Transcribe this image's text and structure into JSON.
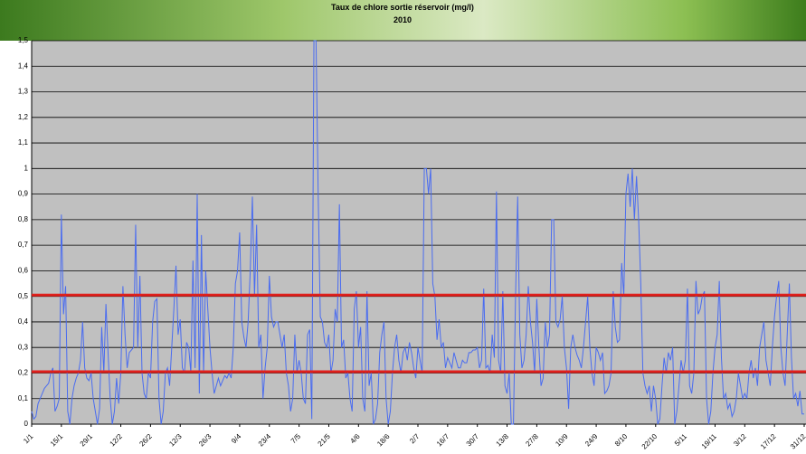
{
  "chart_data": {
    "type": "line",
    "title": "Taux de chlore sortie réservoir (mg/l)",
    "subtitle": "2010",
    "categories": [
      "1/1",
      null,
      null,
      null,
      null,
      null,
      null,
      null,
      null,
      null,
      null,
      null,
      null,
      null,
      "15/1",
      null,
      null,
      null,
      null,
      null,
      null,
      null,
      null,
      null,
      null,
      null,
      null,
      null,
      "29/1",
      null,
      null,
      null,
      null,
      null,
      null,
      null,
      null,
      null,
      null,
      null,
      null,
      null,
      "12/2",
      null,
      null,
      null,
      null,
      null,
      null,
      null,
      null,
      null,
      null,
      null,
      null,
      null,
      "26/2",
      null,
      null,
      null,
      null,
      null,
      null,
      null,
      null,
      null,
      null,
      null,
      null,
      null,
      "12/3",
      null,
      null,
      null,
      null,
      null,
      null,
      null,
      null,
      null,
      null,
      null,
      null,
      null,
      "26/3",
      null,
      null,
      null,
      null,
      null,
      null,
      null,
      null,
      null,
      null,
      null,
      null,
      null,
      "9/4",
      null,
      null,
      null,
      null,
      null,
      null,
      null,
      null,
      null,
      null,
      null,
      null,
      null,
      "23/4",
      null,
      null,
      null,
      null,
      null,
      null,
      null,
      null,
      null,
      null,
      null,
      null,
      null,
      "7/5",
      null,
      null,
      null,
      null,
      null,
      null,
      null,
      null,
      null,
      null,
      null,
      null,
      null,
      "21/5",
      null,
      null,
      null,
      null,
      null,
      null,
      null,
      null,
      null,
      null,
      null,
      null,
      null,
      "4/6",
      null,
      null,
      null,
      null,
      null,
      null,
      null,
      null,
      null,
      null,
      null,
      null,
      null,
      "18/6",
      null,
      null,
      null,
      null,
      null,
      null,
      null,
      null,
      null,
      null,
      null,
      null,
      null,
      "2/7",
      null,
      null,
      null,
      null,
      null,
      null,
      null,
      null,
      null,
      null,
      null,
      null,
      null,
      "16/7",
      null,
      null,
      null,
      null,
      null,
      null,
      null,
      null,
      null,
      null,
      null,
      null,
      null,
      "30/7",
      null,
      null,
      null,
      null,
      null,
      null,
      null,
      null,
      null,
      null,
      null,
      null,
      null,
      "13/8",
      null,
      null,
      null,
      null,
      null,
      null,
      null,
      null,
      null,
      null,
      null,
      null,
      null,
      "27/8",
      null,
      null,
      null,
      null,
      null,
      null,
      null,
      null,
      null,
      null,
      null,
      null,
      null,
      "10/9",
      null,
      null,
      null,
      null,
      null,
      null,
      null,
      null,
      null,
      null,
      null,
      null,
      null,
      "24/9",
      null,
      null,
      null,
      null,
      null,
      null,
      null,
      null,
      null,
      null,
      null,
      null,
      null,
      "8/10",
      null,
      null,
      null,
      null,
      null,
      null,
      null,
      null,
      null,
      null,
      null,
      null,
      null,
      "22/10",
      null,
      null,
      null,
      null,
      null,
      null,
      null,
      null,
      null,
      null,
      null,
      null,
      null,
      "5/11",
      null,
      null,
      null,
      null,
      null,
      null,
      null,
      null,
      null,
      null,
      null,
      null,
      null,
      "19/11",
      null,
      null,
      null,
      null,
      null,
      null,
      null,
      null,
      null,
      null,
      null,
      null,
      null,
      "3/12",
      null,
      null,
      null,
      null,
      null,
      null,
      null,
      null,
      null,
      null,
      null,
      null,
      null,
      "17/12",
      null,
      null,
      null,
      null,
      null,
      null,
      null,
      null,
      null,
      null,
      null,
      null,
      null,
      "31/12"
    ],
    "values": [
      0.05,
      0.02,
      0.03,
      0.08,
      0.1,
      0.12,
      0.14,
      0.15,
      0.16,
      0.2,
      0.22,
      0.05,
      0.07,
      0.1,
      0.82,
      0.43,
      0.54,
      0.05,
      0.0,
      0.1,
      0.15,
      0.18,
      0.2,
      0.25,
      0.4,
      0.22,
      0.18,
      0.17,
      0.2,
      0.1,
      0.05,
      0.0,
      0.06,
      0.38,
      0.2,
      0.47,
      0.28,
      0.1,
      0.0,
      0.05,
      0.18,
      0.08,
      0.2,
      0.54,
      0.35,
      0.22,
      0.28,
      0.29,
      0.3,
      0.78,
      0.3,
      0.58,
      0.2,
      0.12,
      0.1,
      0.2,
      0.18,
      0.4,
      0.48,
      0.49,
      0.1,
      0.0,
      0.05,
      0.2,
      0.22,
      0.15,
      0.3,
      0.45,
      0.62,
      0.35,
      0.41,
      0.22,
      0.2,
      0.32,
      0.3,
      0.2,
      0.64,
      0.22,
      0.9,
      0.12,
      0.74,
      0.2,
      0.6,
      0.45,
      0.3,
      0.2,
      0.12,
      0.15,
      0.18,
      0.15,
      0.17,
      0.19,
      0.18,
      0.2,
      0.18,
      0.3,
      0.55,
      0.6,
      0.75,
      0.4,
      0.34,
      0.3,
      0.4,
      0.6,
      0.89,
      0.5,
      0.78,
      0.3,
      0.35,
      0.1,
      0.22,
      0.3,
      0.58,
      0.42,
      0.38,
      0.4,
      0.4,
      0.35,
      0.3,
      0.35,
      0.2,
      0.15,
      0.05,
      0.1,
      0.35,
      0.2,
      0.25,
      0.2,
      0.1,
      0.08,
      0.35,
      0.37,
      0.02,
      1.5,
      1.5,
      0.9,
      0.42,
      0.4,
      0.32,
      0.3,
      0.35,
      0.2,
      0.25,
      0.45,
      0.4,
      0.86,
      0.3,
      0.33,
      0.18,
      0.2,
      0.1,
      0.05,
      0.45,
      0.52,
      0.3,
      0.38,
      0.1,
      0.05,
      0.52,
      0.15,
      0.2,
      0.0,
      0.02,
      0.08,
      0.28,
      0.35,
      0.4,
      0.1,
      0.0,
      0.05,
      0.2,
      0.3,
      0.35,
      0.25,
      0.2,
      0.28,
      0.3,
      0.25,
      0.32,
      0.28,
      0.22,
      0.18,
      0.3,
      0.25,
      0.2,
      1.0,
      1.0,
      0.9,
      1.0,
      0.55,
      0.5,
      0.33,
      0.41,
      0.3,
      0.32,
      0.22,
      0.26,
      0.24,
      0.22,
      0.28,
      0.25,
      0.22,
      0.22,
      0.25,
      0.24,
      0.24,
      0.28,
      0.28,
      0.29,
      0.29,
      0.3,
      0.22,
      0.25,
      0.53,
      0.22,
      0.23,
      0.2,
      0.35,
      0.26,
      0.91,
      0.25,
      0.2,
      0.52,
      0.15,
      0.12,
      0.2,
      0.0,
      0.0,
      0.5,
      0.89,
      0.35,
      0.22,
      0.25,
      0.35,
      0.54,
      0.4,
      0.32,
      0.2,
      0.49,
      0.3,
      0.15,
      0.18,
      0.4,
      0.3,
      0.35,
      0.8,
      0.8,
      0.4,
      0.38,
      0.41,
      0.5,
      0.3,
      0.22,
      0.06,
      0.3,
      0.35,
      0.3,
      0.27,
      0.25,
      0.22,
      0.3,
      0.4,
      0.5,
      0.3,
      0.2,
      0.15,
      0.3,
      0.28,
      0.25,
      0.28,
      0.12,
      0.13,
      0.15,
      0.2,
      0.52,
      0.38,
      0.32,
      0.33,
      0.63,
      0.5,
      0.9,
      0.98,
      0.85,
      1.0,
      0.8,
      0.97,
      0.8,
      0.55,
      0.2,
      0.15,
      0.12,
      0.15,
      0.05,
      0.15,
      0.1,
      0.0,
      0.02,
      0.15,
      0.26,
      0.2,
      0.28,
      0.25,
      0.3,
      0.0,
      0.05,
      0.15,
      0.25,
      0.2,
      0.25,
      0.53,
      0.15,
      0.12,
      0.2,
      0.56,
      0.43,
      0.45,
      0.5,
      0.52,
      0.1,
      0.0,
      0.05,
      0.2,
      0.3,
      0.35,
      0.56,
      0.26,
      0.1,
      0.12,
      0.06,
      0.08,
      0.03,
      0.05,
      0.1,
      0.2,
      0.15,
      0.1,
      0.12,
      0.1,
      0.2,
      0.25,
      0.18,
      0.22,
      0.15,
      0.3,
      0.35,
      0.4,
      0.25,
      0.2,
      0.15,
      0.3,
      0.42,
      0.5,
      0.56,
      0.3,
      0.2,
      0.15,
      0.35,
      0.55,
      0.26,
      0.1,
      0.12,
      0.07,
      0.13,
      0.04,
      0.04
    ],
    "color": "#4a6cf0",
    "reference_lines": [
      0.505,
      0.205
    ],
    "reference_color": "#e0201c",
    "ylim": [
      0,
      1.5
    ],
    "yticks": [
      0,
      {
        "value": 0.1,
        "label": "0,1"
      },
      {
        "value": 0.2,
        "label": "0,2"
      },
      {
        "value": 0.3,
        "label": "0,3"
      },
      {
        "value": 0.4,
        "label": "0,4"
      },
      {
        "value": 0.5,
        "label": "0,5"
      },
      {
        "value": 0.6,
        "label": "0,6"
      },
      {
        "value": 0.7,
        "label": "0,7"
      },
      {
        "value": 0.8,
        "label": "0,8"
      },
      {
        "value": 0.9,
        "label": "0,9"
      },
      1,
      {
        "value": 1.1,
        "label": "1,1"
      },
      {
        "value": 1.2,
        "label": "1,2"
      },
      {
        "value": 1.3,
        "label": "1,3"
      },
      {
        "value": 1.4,
        "label": "1,4"
      },
      {
        "value": 1.5,
        "label": "1,5"
      }
    ],
    "grid": true
  }
}
